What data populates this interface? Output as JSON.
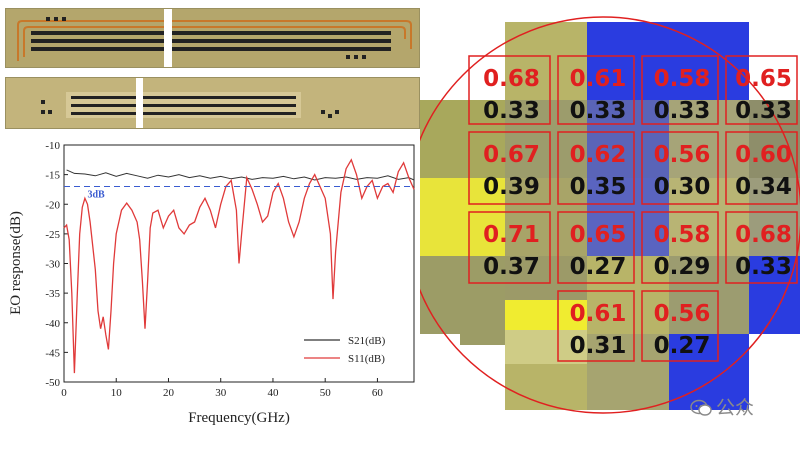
{
  "chart_data": {
    "type": "line",
    "title": "",
    "xlabel": "Frequency(GHz)",
    "ylabel": "EO response(dB)",
    "xlim": [
      0,
      67
    ],
    "ylim": [
      -50,
      -10
    ],
    "x_ticks": [
      0,
      10,
      20,
      30,
      40,
      50,
      60
    ],
    "y_ticks": [
      -10,
      -15,
      -20,
      -25,
      -30,
      -35,
      -40,
      -45,
      -50
    ],
    "legend_position": "bottom-right",
    "reference_line": {
      "label": "3dB",
      "y": -17,
      "color": "#3a5bd0"
    },
    "series": [
      {
        "name": "S21(dB)",
        "color": "#333333",
        "points": [
          [
            0.5,
            -14.2
          ],
          [
            2,
            -14.8
          ],
          [
            4,
            -14.9
          ],
          [
            6,
            -15.2
          ],
          [
            8,
            -14.7
          ],
          [
            10,
            -15.3
          ],
          [
            12,
            -14.8
          ],
          [
            14,
            -15.2
          ],
          [
            16,
            -15.6
          ],
          [
            18,
            -15.1
          ],
          [
            20,
            -15.4
          ],
          [
            22,
            -15.0
          ],
          [
            24,
            -15.5
          ],
          [
            26,
            -15.2
          ],
          [
            28,
            -15.6
          ],
          [
            30,
            -15.3
          ],
          [
            32,
            -15.7
          ],
          [
            34,
            -15.4
          ],
          [
            36,
            -15.8
          ],
          [
            38,
            -15.5
          ],
          [
            40,
            -15.6
          ],
          [
            42,
            -15.3
          ],
          [
            44,
            -15.7
          ],
          [
            46,
            -15.4
          ],
          [
            48,
            -15.9
          ],
          [
            50,
            -15.5
          ],
          [
            52,
            -15.6
          ],
          [
            54,
            -15.4
          ],
          [
            56,
            -15.8
          ],
          [
            58,
            -15.5
          ],
          [
            60,
            -15.6
          ],
          [
            62,
            -15.2
          ],
          [
            64,
            -15.8
          ],
          [
            66,
            -15.5
          ],
          [
            67,
            -15.9
          ]
        ]
      },
      {
        "name": "S11(dB)",
        "color": "#e03a3a",
        "points": [
          [
            0,
            -24
          ],
          [
            0.5,
            -23.5
          ],
          [
            1,
            -26
          ],
          [
            1.5,
            -35
          ],
          [
            2,
            -48.5
          ],
          [
            2.5,
            -36
          ],
          [
            3,
            -25
          ],
          [
            3.5,
            -20.5
          ],
          [
            4,
            -19
          ],
          [
            4.5,
            -20
          ],
          [
            5,
            -23
          ],
          [
            5.5,
            -27
          ],
          [
            6,
            -31
          ],
          [
            6.5,
            -38
          ],
          [
            7,
            -41
          ],
          [
            7.5,
            -39
          ],
          [
            8,
            -42
          ],
          [
            8.5,
            -44.5
          ],
          [
            9,
            -38
          ],
          [
            9.5,
            -30
          ],
          [
            10,
            -25
          ],
          [
            11,
            -21
          ],
          [
            12,
            -19.8
          ],
          [
            13,
            -21
          ],
          [
            14,
            -23
          ],
          [
            14.5,
            -26
          ],
          [
            15,
            -33
          ],
          [
            15.5,
            -41
          ],
          [
            16,
            -33
          ],
          [
            16.5,
            -24
          ],
          [
            17,
            -21.5
          ],
          [
            18,
            -21
          ],
          [
            19,
            -24
          ],
          [
            20,
            -22
          ],
          [
            21,
            -21
          ],
          [
            22,
            -24
          ],
          [
            23,
            -25
          ],
          [
            24,
            -23.5
          ],
          [
            25,
            -23
          ],
          [
            26,
            -20.5
          ],
          [
            27,
            -19
          ],
          [
            28,
            -21
          ],
          [
            29,
            -24
          ],
          [
            30,
            -20
          ],
          [
            31,
            -17
          ],
          [
            32,
            -16
          ],
          [
            33,
            -21
          ],
          [
            33.5,
            -30
          ],
          [
            34,
            -25
          ],
          [
            35,
            -15.5
          ],
          [
            36,
            -17.5
          ],
          [
            37,
            -20
          ],
          [
            38,
            -23
          ],
          [
            39,
            -22
          ],
          [
            40,
            -18
          ],
          [
            41,
            -16.5
          ],
          [
            42,
            -19
          ],
          [
            43,
            -23
          ],
          [
            44,
            -25.5
          ],
          [
            45,
            -23
          ],
          [
            46,
            -19
          ],
          [
            47,
            -16.5
          ],
          [
            48,
            -15
          ],
          [
            49,
            -17
          ],
          [
            50,
            -19
          ],
          [
            51,
            -25
          ],
          [
            51.5,
            -36
          ],
          [
            52,
            -28
          ],
          [
            53,
            -18
          ],
          [
            54,
            -14
          ],
          [
            55,
            -12.5
          ],
          [
            56,
            -15
          ],
          [
            57,
            -19
          ],
          [
            58,
            -17
          ],
          [
            59,
            -16
          ],
          [
            60,
            -19
          ],
          [
            61,
            -17
          ],
          [
            62,
            -16.5
          ],
          [
            63,
            -18
          ],
          [
            64,
            -14.5
          ],
          [
            65,
            -13
          ],
          [
            66,
            -15.5
          ],
          [
            67,
            -17.5
          ]
        ]
      }
    ]
  },
  "wafer": {
    "cells": [
      [
        {
          "top": "0.68",
          "bottom": "0.33"
        },
        {
          "top": "0.61",
          "bottom": "0.33"
        },
        {
          "top": "0.58",
          "bottom": "0.33"
        },
        {
          "top": "0.65",
          "bottom": "0.33"
        }
      ],
      [
        {
          "top": "0.67",
          "bottom": "0.39"
        },
        {
          "top": "0.62",
          "bottom": "0.35"
        },
        {
          "top": "0.56",
          "bottom": "0.30"
        },
        {
          "top": "0.60",
          "bottom": "0.34"
        }
      ],
      [
        {
          "top": "0.71",
          "bottom": "0.37"
        },
        {
          "top": "0.65",
          "bottom": "0.27"
        },
        {
          "top": "0.58",
          "bottom": "0.29"
        },
        {
          "top": "0.68",
          "bottom": "0.33"
        }
      ],
      [
        null,
        {
          "top": "0.61",
          "bottom": "0.31"
        },
        {
          "top": "0.56",
          "bottom": "0.27"
        },
        null
      ]
    ],
    "top_color": "#e02020",
    "bottom_color": "#111111",
    "grid_color": "#e02020"
  },
  "watermark": {
    "text": "公众"
  }
}
